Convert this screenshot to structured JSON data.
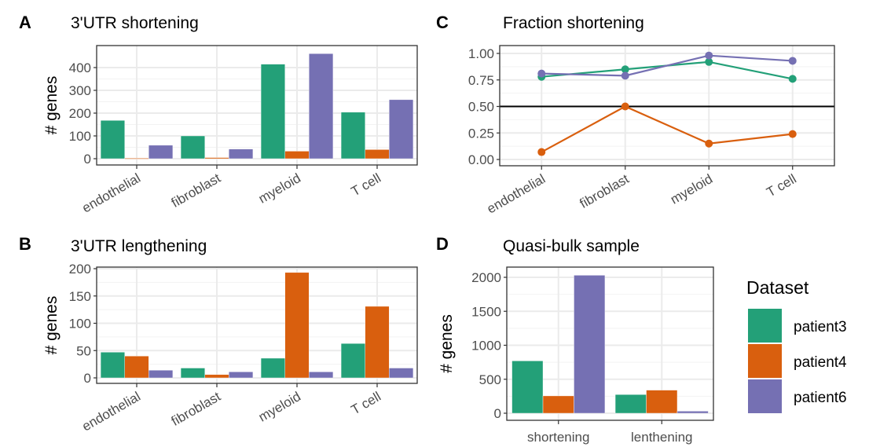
{
  "colors": {
    "patient3": "#23a078",
    "patient4": "#d95f0e",
    "patient6": "#7570b3"
  },
  "legend": {
    "title": "Dataset",
    "items": [
      "patient3",
      "patient4",
      "patient6"
    ]
  },
  "chart_data": [
    {
      "panel": "A",
      "title": "3'UTR shortening",
      "type": "bar",
      "ylabel": "# genes",
      "categories": [
        "endothelial",
        "fibroblast",
        "myeloid",
        "T cell"
      ],
      "ylim": [
        0,
        480
      ],
      "yticks": [
        0,
        100,
        200,
        300,
        400
      ],
      "series": [
        {
          "name": "patient3",
          "values": [
            168,
            100,
            415,
            204
          ]
        },
        {
          "name": "patient4",
          "values": [
            2,
            5,
            33,
            40
          ]
        },
        {
          "name": "patient6",
          "values": [
            59,
            42,
            461,
            259
          ]
        }
      ]
    },
    {
      "panel": "B",
      "title": "3'UTR lengthening",
      "type": "bar",
      "ylabel": "# genes",
      "categories": [
        "endothelial",
        "fibroblast",
        "myeloid",
        "T cell"
      ],
      "ylim": [
        0,
        200
      ],
      "yticks": [
        0,
        50,
        100,
        150,
        200
      ],
      "series": [
        {
          "name": "patient3",
          "values": [
            47,
            18,
            36,
            63
          ]
        },
        {
          "name": "patient4",
          "values": [
            40,
            6,
            193,
            131
          ]
        },
        {
          "name": "patient6",
          "values": [
            14,
            11,
            11,
            18
          ]
        }
      ]
    },
    {
      "panel": "C",
      "title": "Fraction shortening",
      "type": "line",
      "ylabel": "",
      "categories": [
        "endothelial",
        "fibroblast",
        "myeloid",
        "T cell"
      ],
      "ylim": [
        0,
        1
      ],
      "yticks": [
        "0.00",
        "0.25",
        "0.50",
        "0.75",
        "1.00"
      ],
      "hline": 0.5,
      "series": [
        {
          "name": "patient3",
          "values": [
            0.78,
            0.85,
            0.92,
            0.76
          ]
        },
        {
          "name": "patient4",
          "values": [
            0.07,
            0.5,
            0.15,
            0.24
          ]
        },
        {
          "name": "patient6",
          "values": [
            0.81,
            0.79,
            0.98,
            0.93
          ]
        }
      ]
    },
    {
      "panel": "D",
      "title": "Quasi-bulk sample",
      "type": "bar",
      "ylabel": "# genes",
      "categories": [
        "shortening",
        "lenthening"
      ],
      "ylim": [
        0,
        2100
      ],
      "yticks": [
        0,
        500,
        1000,
        1500,
        2000
      ],
      "series": [
        {
          "name": "patient3",
          "values": [
            770,
            275
          ]
        },
        {
          "name": "patient4",
          "values": [
            255,
            340
          ]
        },
        {
          "name": "patient6",
          "values": [
            2030,
            30
          ]
        }
      ]
    }
  ]
}
